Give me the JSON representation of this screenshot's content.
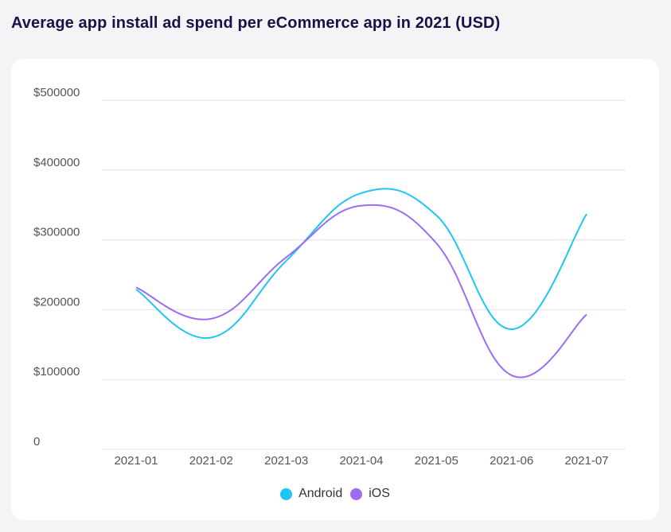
{
  "page": {
    "title": "Average app install ad spend per eCommerce app in 2021 (USD)"
  },
  "chart_data": {
    "type": "line",
    "title": "Average app install ad spend per eCommerce app in 2021 (USD)",
    "xlabel": "",
    "ylabel": "",
    "categories": [
      "2021-01",
      "2021-02",
      "2021-03",
      "2021-04",
      "2021-05",
      "2021-06",
      "2021-07"
    ],
    "series": [
      {
        "name": "Android",
        "color": "#1ec5f5",
        "values": [
          229000,
          160000,
          270000,
          367000,
          335000,
          172000,
          337000
        ]
      },
      {
        "name": "iOS",
        "color": "#9d6cf5",
        "values": [
          232000,
          187000,
          275000,
          349000,
          295000,
          106000,
          193000
        ]
      }
    ],
    "yticks": [
      "$500000",
      "$400000",
      "$300000",
      "$200000",
      "$100000",
      "0"
    ],
    "ytick_values": [
      500000,
      400000,
      300000,
      200000,
      100000,
      0
    ],
    "ylim": [
      0,
      500000
    ],
    "grid": true,
    "legend_position": "bottom-center"
  }
}
